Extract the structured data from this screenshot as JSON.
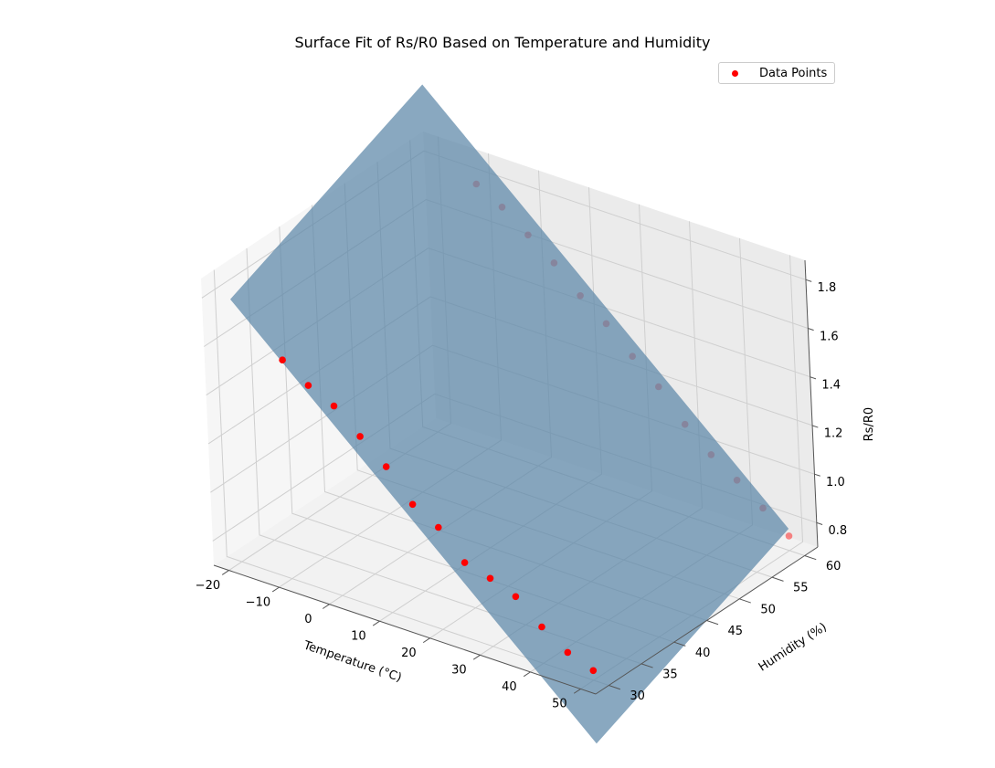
{
  "chart_data": {
    "type": "scatter",
    "subtype": "3d-surface-with-scatter",
    "title": "Surface Fit of Rs/R0 Based on Temperature and Humidity",
    "xlabel": "Temperature (°C)",
    "ylabel": "Humidity (%)",
    "zlabel": "Rs/R0",
    "x_ticks": [
      "−20",
      "−10",
      "0",
      "10",
      "20",
      "30",
      "40",
      "50"
    ],
    "y_ticks": [
      "30",
      "35",
      "40",
      "45",
      "50",
      "55",
      "60"
    ],
    "z_ticks": [
      "0.8",
      "1.0",
      "1.2",
      "1.4",
      "1.6",
      "1.8"
    ],
    "xlim": [
      -23,
      53
    ],
    "ylim": [
      28,
      62
    ],
    "zlim": [
      0.7,
      1.88
    ],
    "legend": {
      "label": "Data Points",
      "placement": "top-right"
    },
    "grid": true,
    "surface": {
      "color": "#5b86a8",
      "corners": [
        {
          "x": -20,
          "y": 30,
          "z": 1.78
        },
        {
          "x": 50,
          "y": 30,
          "z": 0.44
        },
        {
          "x": 50,
          "y": 60,
          "z": 0.79
        },
        {
          "x": -20,
          "y": 60,
          "z": 2.13
        }
      ]
    },
    "series": [
      {
        "name": "Data Points",
        "color": "#ff0000",
        "x": [
          -10,
          -5,
          0,
          5,
          10,
          15,
          20,
          25,
          30,
          35,
          40,
          45,
          50,
          -10,
          -5,
          0,
          5,
          10,
          15,
          20,
          25,
          30,
          35,
          40,
          45,
          50
        ],
        "y": [
          30,
          30,
          30,
          30,
          30,
          30,
          30,
          30,
          30,
          30,
          30,
          30,
          30,
          60,
          60,
          60,
          60,
          60,
          60,
          60,
          60,
          60,
          60,
          60,
          60,
          60
        ],
        "z": [
          1.6,
          1.53,
          1.48,
          1.39,
          1.3,
          1.18,
          1.12,
          1.01,
          0.98,
          0.94,
          0.85,
          0.78,
          0.74,
          1.79,
          1.73,
          1.65,
          1.57,
          1.47,
          1.39,
          1.29,
          1.2,
          1.08,
          0.99,
          0.92,
          0.84,
          0.76
        ]
      }
    ]
  }
}
